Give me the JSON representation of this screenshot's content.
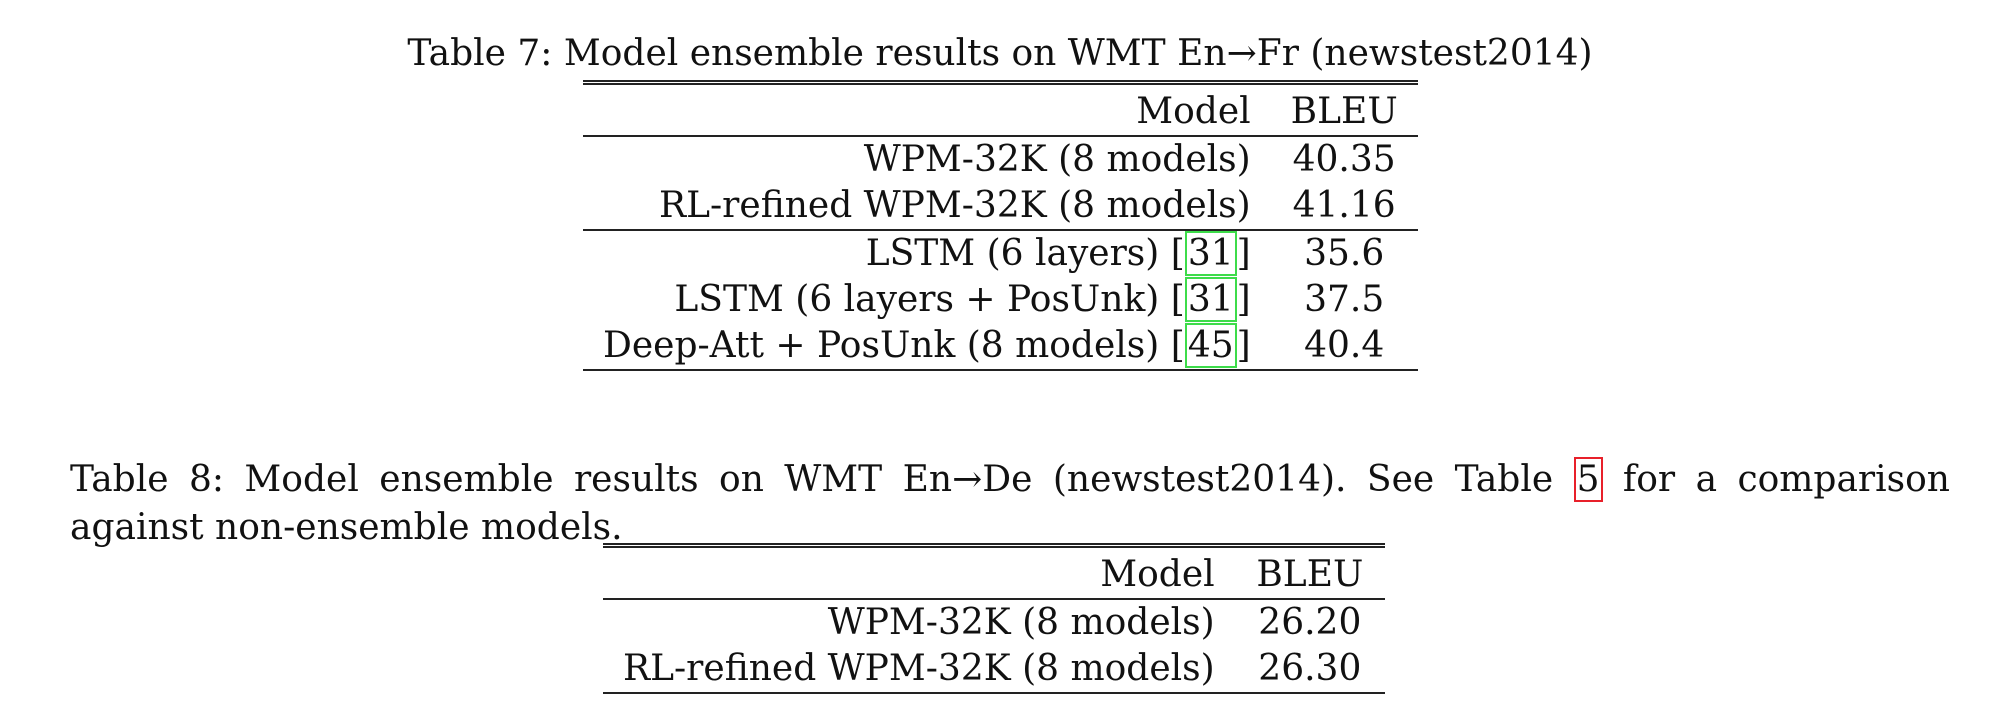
{
  "table7": {
    "caption": "Table 7:  Model ensemble results on WMT En→Fr (newstest2014)",
    "headers": {
      "model": "Model",
      "bleu": "BLEU"
    },
    "rows": [
      {
        "model": "WPM-32K (8 models)",
        "ref": "",
        "bleu": "40.35"
      },
      {
        "model": "RL-refined WPM-32K (8 models)",
        "ref": "",
        "bleu": "41.16"
      },
      {
        "model": "LSTM (6 layers) [",
        "ref": "31",
        "ref_close": "]",
        "bleu": "35.6"
      },
      {
        "model": "LSTM (6 layers + PosUnk) [",
        "ref": "31",
        "ref_close": "]",
        "bleu": "37.5"
      },
      {
        "model": "Deep-Att + PosUnk (8 models) [",
        "ref": "45",
        "ref_close": "]",
        "bleu": "40.4"
      }
    ]
  },
  "table8": {
    "caption_before": "Table 8:  Model ensemble results on WMT En→De (newstest2014).  See Table ",
    "caption_ref": "5",
    "caption_after": " for a comparison against non-ensemble models.",
    "headers": {
      "model": "Model",
      "bleu": "BLEU"
    },
    "rows": [
      {
        "model": "WPM-32K (8 models)",
        "bleu": "26.20"
      },
      {
        "model": "RL-refined WPM-32K (8 models)",
        "bleu": "26.30"
      }
    ]
  },
  "colors": {
    "citation_box": "#3ddc4a",
    "table_ref_box": "#e8202a"
  }
}
